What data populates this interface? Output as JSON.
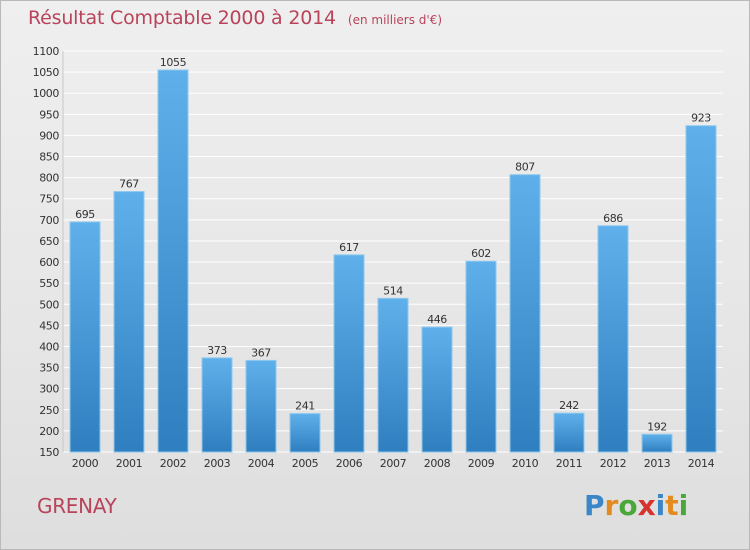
{
  "header": {
    "title": "Résultat Comptable 2000 à 2014",
    "subtitle": "(en milliers d'€)"
  },
  "commune": "GRENAY",
  "logo": {
    "text": "Proxiti",
    "letter_colors": [
      "#3a86c8",
      "#e58a1f",
      "#4aa83a",
      "#d6332f",
      "#3a86c8",
      "#e58a1f",
      "#4aa83a"
    ]
  },
  "colors": {
    "bar_top": "#5fb0ea",
    "bar_bottom": "#2f7fc0",
    "accent": "#b8435a",
    "grid": "#ffffff",
    "axis_text": "#333333"
  },
  "chart_data": {
    "type": "bar",
    "title": "Résultat Comptable 2000 à 2014",
    "subtitle": "(en milliers d'€)",
    "categories": [
      "2000",
      "2001",
      "2002",
      "2003",
      "2004",
      "2005",
      "2006",
      "2007",
      "2008",
      "2009",
      "2010",
      "2011",
      "2012",
      "2013",
      "2014"
    ],
    "values": [
      695,
      767,
      1055,
      373,
      367,
      241,
      617,
      514,
      446,
      602,
      807,
      242,
      686,
      192,
      923
    ],
    "ylim": [
      150,
      1100
    ],
    "yticks": [
      150,
      200,
      250,
      300,
      350,
      400,
      450,
      500,
      550,
      600,
      650,
      700,
      750,
      800,
      850,
      900,
      950,
      1000,
      1050,
      1100
    ],
    "grid": true,
    "data_labels": true
  }
}
